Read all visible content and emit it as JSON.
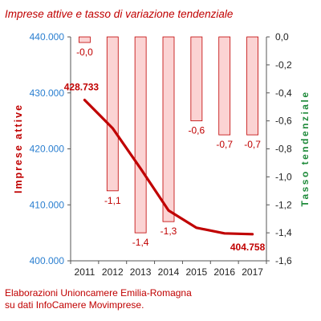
{
  "footnote": {
    "line1": "Elaborazioni Unioncamere Emilia-Romagna",
    "line2": "su dati InfoCamere Movimprese."
  },
  "colors": {
    "line": "#c00000",
    "bar_fill": "#fbd3d3",
    "bar_stroke": "#c00000",
    "left_axis_labels": "#2a7fd0",
    "right_axis_title": "#1e8a3a",
    "axis": "#555555"
  },
  "chart_data": {
    "type": "bar+line",
    "title": "Imprese attive e tasso di variazione tendenziale",
    "categories": [
      "2011",
      "2012",
      "2013",
      "2014",
      "2015",
      "2016",
      "2017"
    ],
    "ylabel_left": "Imprese attive",
    "ylabel_right": "Tasso tendenziale",
    "ylim_left": [
      400000,
      440000
    ],
    "yticks_left": [
      "400.000",
      "410.000",
      "420.000",
      "430.000",
      "440.000"
    ],
    "ylim_right": [
      -1.6,
      0.0
    ],
    "yticks_right": [
      "0,0",
      "-0,2",
      "-0,4",
      "-0,6",
      "-0,8",
      "-1,0",
      "-1,2",
      "-1,4",
      "-1,6"
    ],
    "bars": {
      "values": [
        -0.04,
        -1.1,
        -1.4,
        -1.32,
        -0.6,
        -0.7,
        -0.7
      ],
      "labels": [
        "-0,0",
        "-1,1",
        "-1,4",
        "-1,3",
        "-0,6",
        "-0,7",
        "-0,7"
      ]
    },
    "line": {
      "values": [
        428733,
        423700,
        416500,
        409000,
        405900,
        404900,
        404758
      ],
      "labels": [
        "428.733",
        "",
        "",
        "",
        "",
        "",
        "404.758"
      ]
    },
    "grid": false,
    "legend": "none"
  }
}
